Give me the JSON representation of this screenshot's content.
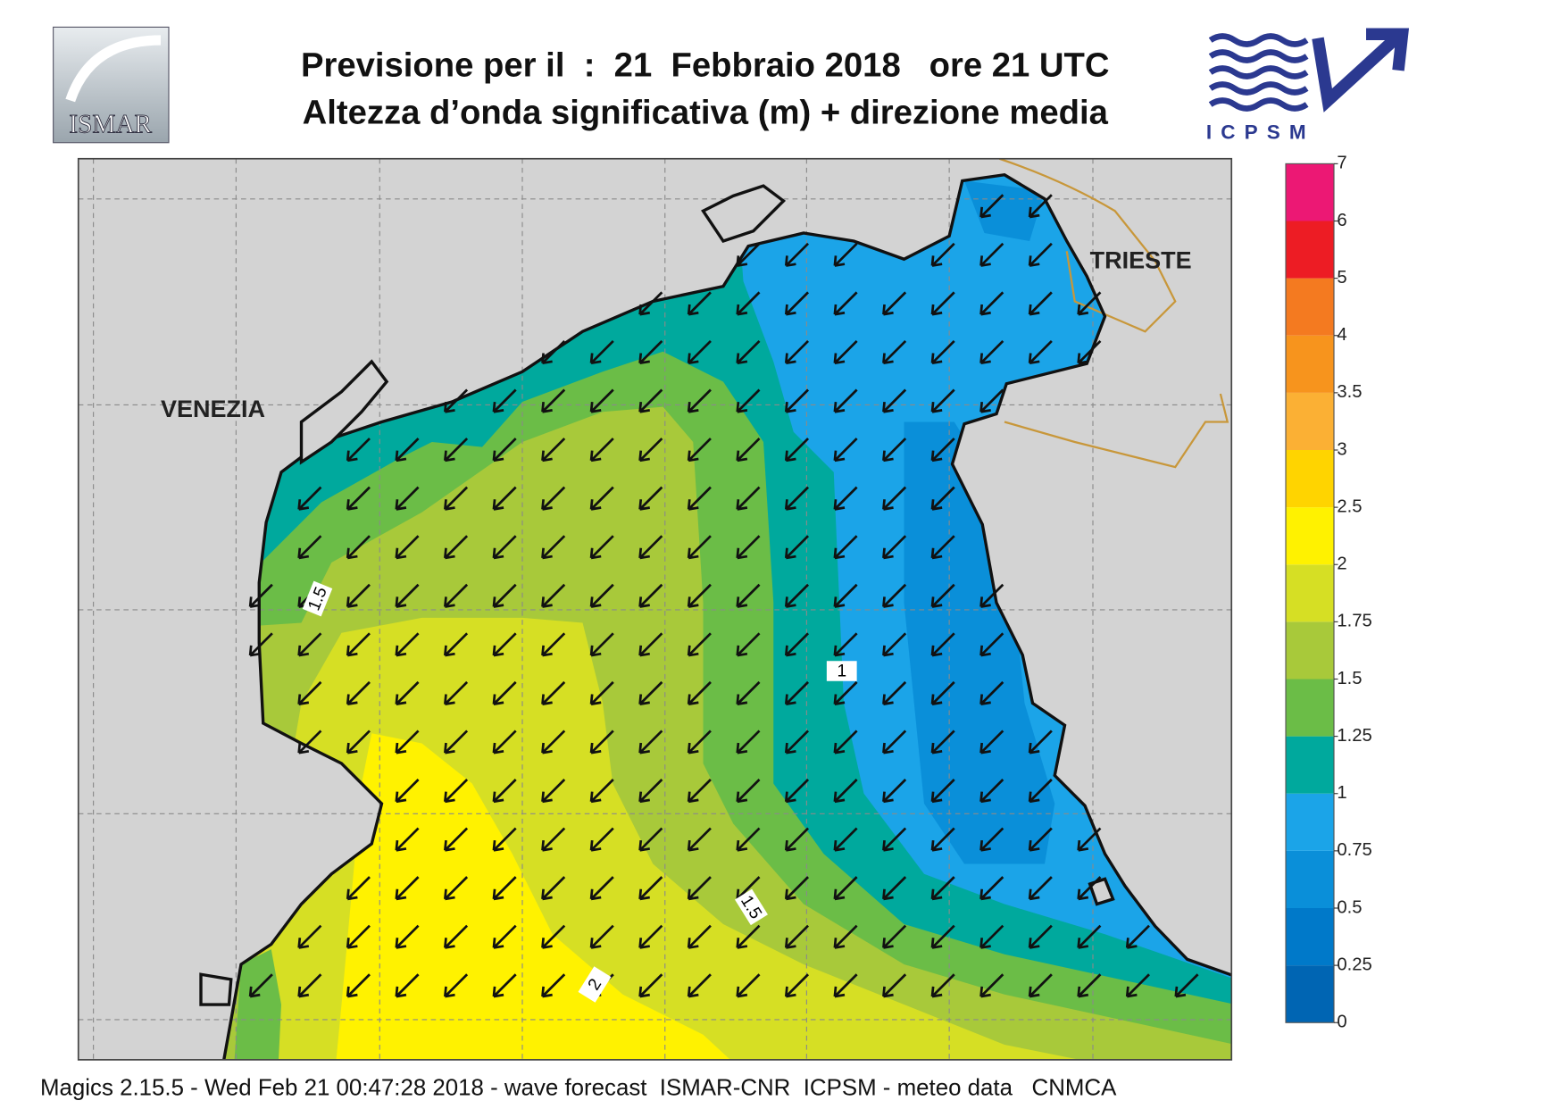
{
  "header": {
    "title_line1": "Previsione per il  :  21  Febbraio 2018   ore 21 UTC",
    "title_line2": "Altezza d’onda significativa (m) + direzione media",
    "logo_left": "ISMAR",
    "logo_right": "ICPSM"
  },
  "map": {
    "place_labels": [
      "VENEZIA",
      "TRIESTE"
    ],
    "contour_labels": [
      1.5,
      1,
      1.5,
      2
    ]
  },
  "legend": {
    "ticks": [
      0,
      0.25,
      0.5,
      0.75,
      1,
      1.25,
      1.5,
      1.75,
      2,
      2.5,
      3,
      3.5,
      4,
      5,
      6,
      7
    ],
    "colors": [
      "#0065b3",
      "#0079c9",
      "#0a8fd9",
      "#1ba4e8",
      "#00a99d",
      "#6bbd47",
      "#a8c93a",
      "#d6df24",
      "#fff200",
      "#ffd400",
      "#fbb034",
      "#f7941d",
      "#f47a20",
      "#ed1c24",
      "#ec1874"
    ]
  },
  "footer": "Magics 2.15.5 - Wed Feb 21 00:47:28 2018 - wave forecast  ISMAR-CNR  ICPSM - meteo data   CNMCA"
}
